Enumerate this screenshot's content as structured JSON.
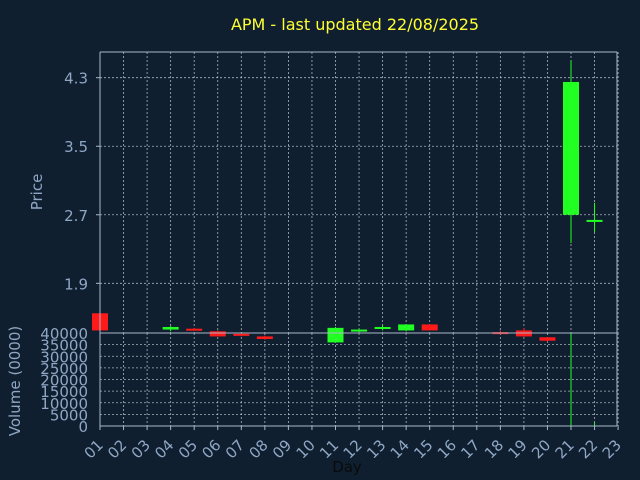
{
  "colors": {
    "background": "#0f1f30",
    "axis": "#a9b8c9",
    "grid": "#c8ccd0",
    "title": "#ffff33",
    "label": "#8fa7c4",
    "up": "#22ff22",
    "down": "#ff1a1a"
  },
  "chart_data": {
    "type": "candlestick",
    "title": "APM - last updated 22/08/2025",
    "xlabel": "Day",
    "price_panel": {
      "ylabel": "Price",
      "ylim": [
        1.32,
        4.6
      ],
      "yticks": [
        "1.9",
        "2.7",
        "3.5",
        "4.3"
      ],
      "ytick_values": [
        1.9,
        2.7,
        3.5,
        4.3
      ]
    },
    "volume_panel": {
      "ylabel": "Volume (0000)",
      "ylim": [
        0,
        40000
      ],
      "yticks": [
        "0",
        "5000",
        "10000",
        "15000",
        "20000",
        "25000",
        "30000",
        "35000",
        "40000"
      ],
      "ytick_values": [
        0,
        5000,
        10000,
        15000,
        20000,
        25000,
        30000,
        35000,
        40000
      ]
    },
    "x_ticks": [
      "01",
      "02",
      "03",
      "04",
      "05",
      "06",
      "07",
      "08",
      "09",
      "10",
      "11",
      "12",
      "13",
      "14",
      "15",
      "16",
      "17",
      "18",
      "19",
      "20",
      "21",
      "22",
      "23"
    ],
    "candles": [
      {
        "day": 1,
        "open": 1.55,
        "high": 1.55,
        "low": 1.35,
        "close": 1.35,
        "volume": 0
      },
      {
        "day": 4,
        "open": 1.36,
        "high": 1.4,
        "low": 1.34,
        "close": 1.39,
        "volume": 0
      },
      {
        "day": 5,
        "open": 1.37,
        "high": 1.38,
        "low": 1.35,
        "close": 1.36,
        "volume": 0
      },
      {
        "day": 6,
        "open": 1.34,
        "high": 1.35,
        "low": 1.28,
        "close": 1.28,
        "volume": 0
      },
      {
        "day": 7,
        "open": 1.31,
        "high": 1.32,
        "low": 1.28,
        "close": 1.29,
        "volume": 0
      },
      {
        "day": 8,
        "open": 1.28,
        "high": 1.29,
        "low": 1.24,
        "close": 1.25,
        "volume": 0
      },
      {
        "day": 11,
        "open": 1.21,
        "high": 1.39,
        "low": 1.21,
        "close": 1.38,
        "volume": 0
      },
      {
        "day": 12,
        "open": 1.34,
        "high": 1.37,
        "low": 1.33,
        "close": 1.36,
        "volume": 0
      },
      {
        "day": 13,
        "open": 1.37,
        "high": 1.41,
        "low": 1.35,
        "close": 1.39,
        "volume": 0
      },
      {
        "day": 14,
        "open": 1.35,
        "high": 1.42,
        "low": 1.34,
        "close": 1.42,
        "volume": 0
      },
      {
        "day": 15,
        "open": 1.42,
        "high": 1.42,
        "low": 1.35,
        "close": 1.35,
        "volume": 0
      },
      {
        "day": 18,
        "open": 1.33,
        "high": 1.35,
        "low": 1.31,
        "close": 1.32,
        "volume": 0
      },
      {
        "day": 19,
        "open": 1.35,
        "high": 1.38,
        "low": 1.27,
        "close": 1.28,
        "volume": 0
      },
      {
        "day": 20,
        "open": 1.27,
        "high": 1.27,
        "low": 1.22,
        "close": 1.23,
        "volume": 0
      },
      {
        "day": 21,
        "open": 2.7,
        "high": 4.5,
        "low": 2.37,
        "close": 4.25,
        "volume": 40000
      },
      {
        "day": 22,
        "open": 2.62,
        "high": 2.84,
        "low": 2.5,
        "close": 2.64,
        "volume": 1500
      }
    ]
  }
}
